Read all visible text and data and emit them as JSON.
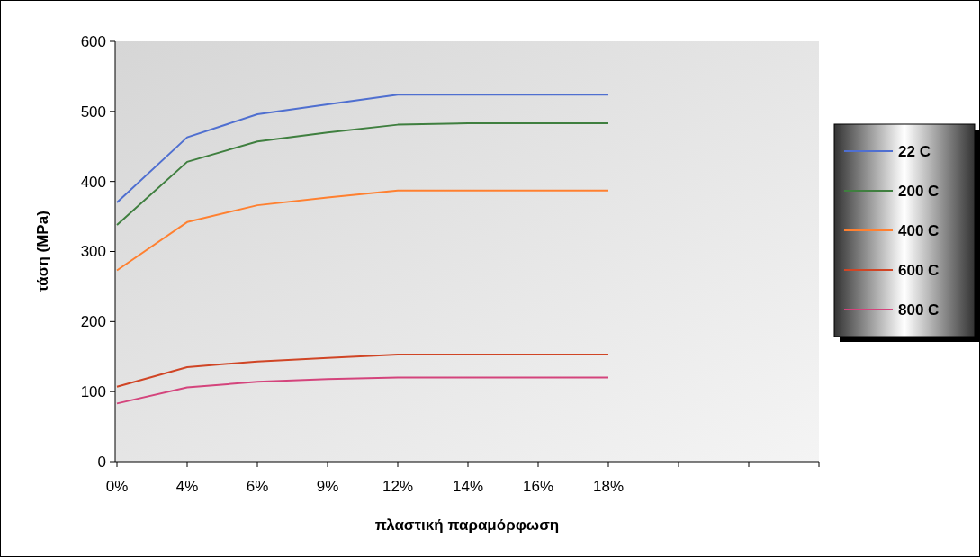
{
  "chart_data": {
    "type": "line",
    "xlabel": "πλαστική παραμόρφωση",
    "ylabel": "τάση (MPa)",
    "categories": [
      "0%",
      "4%",
      "6%",
      "9%",
      "12%",
      "14%",
      "16%",
      "18%",
      null,
      null
    ],
    "ylim": [
      0,
      600
    ],
    "yticks": [
      0,
      100,
      200,
      300,
      400,
      500,
      600
    ],
    "grid": false,
    "legend": "right",
    "marker": "none",
    "series": [
      {
        "name": "22 C",
        "color": "#4f6fd0",
        "values": [
          370,
          463,
          496,
          510,
          524,
          524,
          524,
          524,
          null,
          null
        ]
      },
      {
        "name": "200 C",
        "color": "#3f7f3f",
        "values": [
          338,
          428,
          457,
          470,
          481,
          483,
          483,
          483,
          null,
          null
        ]
      },
      {
        "name": "400 C",
        "color": "#ff8030",
        "values": [
          273,
          342,
          366,
          377,
          387,
          387,
          387,
          387,
          null,
          null
        ]
      },
      {
        "name": "600 C",
        "color": "#d04525",
        "values": [
          107,
          135,
          143,
          148,
          153,
          153,
          153,
          153,
          null,
          null
        ]
      },
      {
        "name": "800 C",
        "color": "#d4447c",
        "values": [
          83,
          106,
          114,
          118,
          120,
          120,
          120,
          120,
          null,
          null
        ]
      }
    ]
  }
}
